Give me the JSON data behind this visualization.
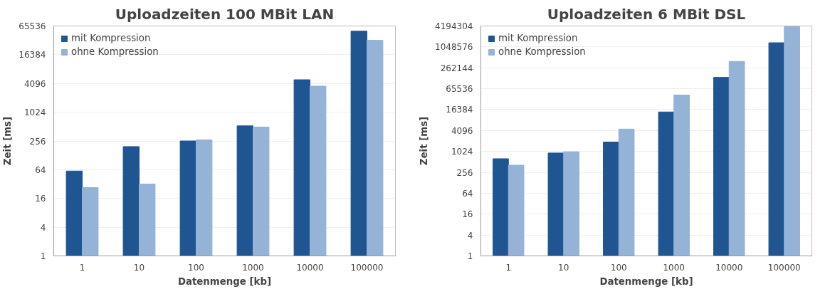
{
  "chart_data": [
    {
      "type": "bar",
      "title": "Uploadzeiten 100 MBit LAN",
      "xlabel": "Datenmenge [kb]",
      "ylabel": "Zeit [ms]",
      "log": true,
      "grid": "y",
      "legend": "top left",
      "categories": [
        "1",
        "10",
        "100",
        "1000",
        "10000",
        "100000"
      ],
      "ylim": [
        1,
        65536
      ],
      "yticks": [
        1,
        4,
        16,
        64,
        256,
        1024,
        4096,
        16384,
        65536
      ],
      "series": [
        {
          "name": "mit Kompression",
          "color": "#1f5591",
          "values": [
            60,
            195,
            256,
            530,
            4900,
            51000
          ]
        },
        {
          "name": "ohne Kompression",
          "color": "#95b3d7",
          "values": [
            27,
            32,
            270,
            500,
            3600,
            33000
          ]
        }
      ]
    },
    {
      "type": "bar",
      "title": "Uploadzeiten 6 MBit DSL",
      "xlabel": "Datenmenge [kb]",
      "ylabel": "Zeit [ms]",
      "log": true,
      "grid": "y",
      "legend": "top left",
      "categories": [
        "1",
        "10",
        "100",
        "1000",
        "10000",
        "100000"
      ],
      "ylim": [
        1,
        4194304
      ],
      "yticks": [
        1,
        4,
        16,
        64,
        256,
        1024,
        4096,
        16384,
        65536,
        262144,
        1048576,
        4194304
      ],
      "series": [
        {
          "name": "mit Kompression",
          "color": "#1f5591",
          "values": [
            630,
            920,
            1900,
            14000,
            139000,
            1380000
          ]
        },
        {
          "name": "ohne Kompression",
          "color": "#95b3d7",
          "values": [
            410,
            1000,
            4500,
            43000,
            400000,
            4000000
          ]
        }
      ]
    }
  ]
}
